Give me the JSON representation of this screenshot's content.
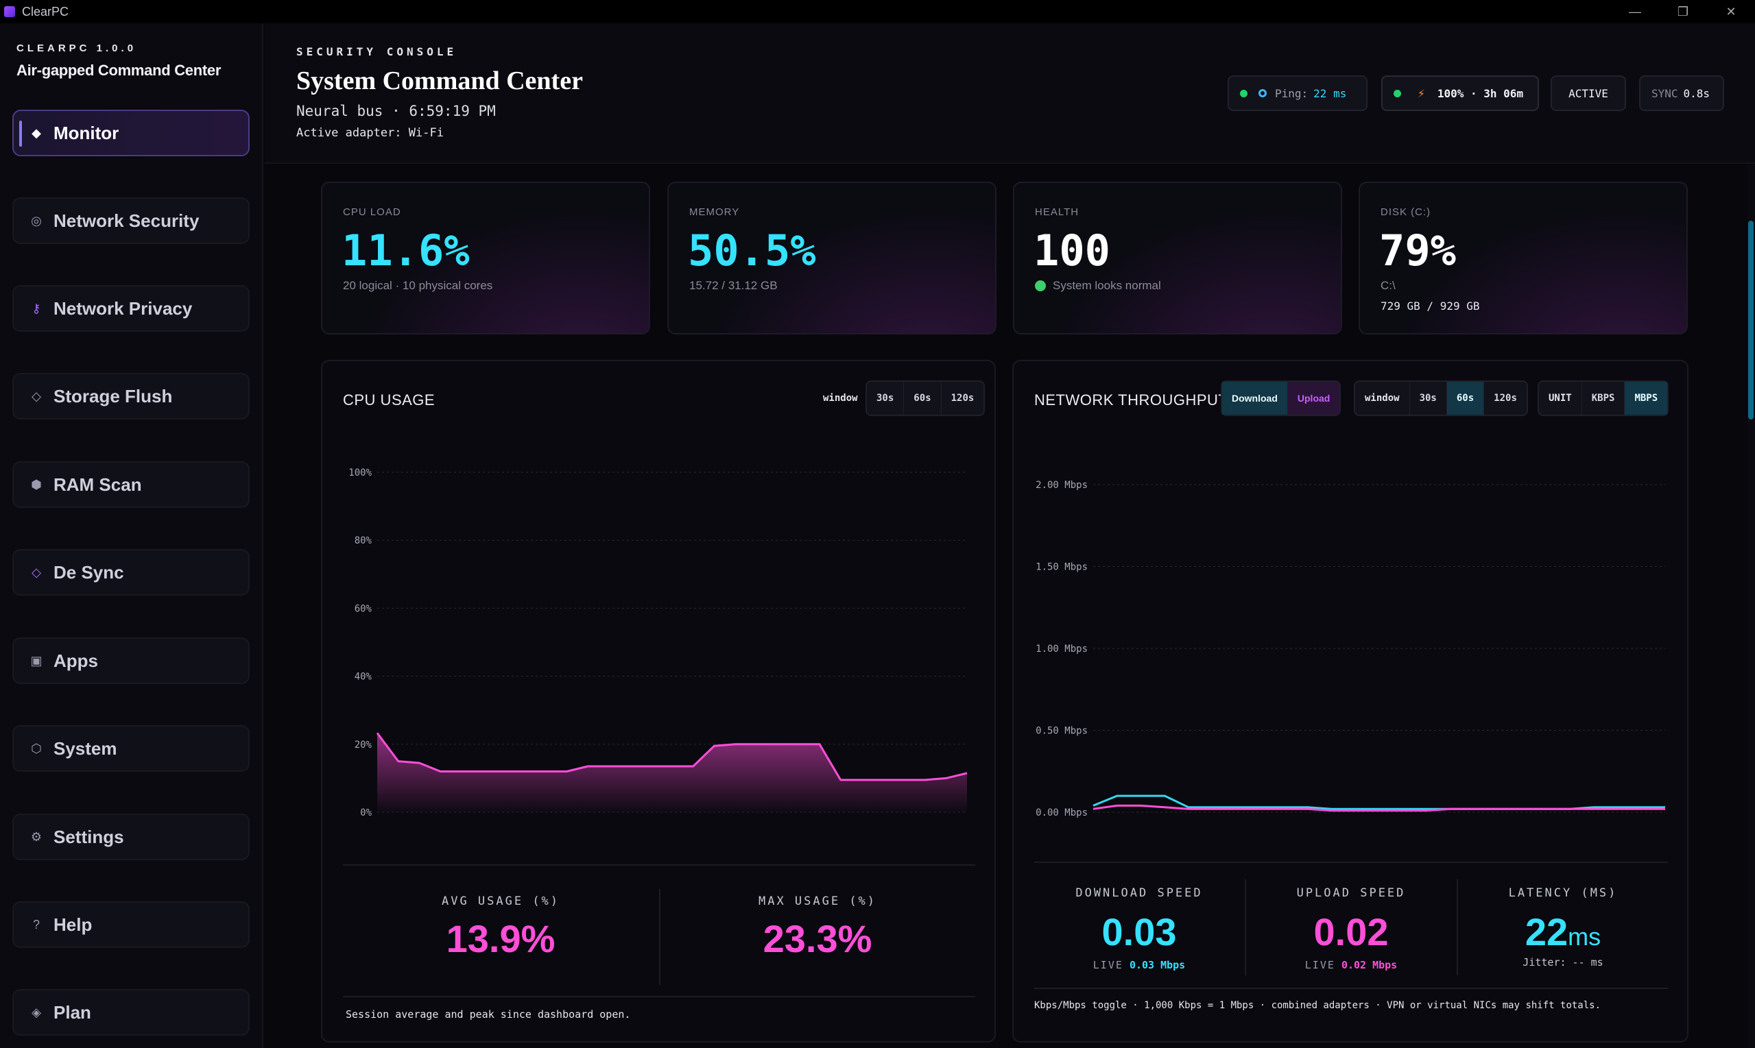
{
  "window": {
    "title": "ClearPC",
    "minimize": "—",
    "restore": "❐",
    "close": "✕"
  },
  "sidebar": {
    "version": "CLEARPC 1.0.0",
    "subtitle": "Air-gapped Command Center",
    "items": [
      {
        "label": "Monitor",
        "icon": "◆",
        "icon_name": "diamond-icon"
      },
      {
        "label": "Network Security",
        "icon": "◎",
        "icon_name": "shield-icon"
      },
      {
        "label": "Network Privacy",
        "icon": "⚷",
        "icon_name": "key-icon"
      },
      {
        "label": "Storage Flush",
        "icon": "◇",
        "icon_name": "diamond-outline-icon"
      },
      {
        "label": "RAM Scan",
        "icon": "⬢",
        "icon_name": "hexagon-icon"
      },
      {
        "label": "De Sync",
        "icon": "◇",
        "icon_name": "sync-diamond-icon"
      },
      {
        "label": "Apps",
        "icon": "▣",
        "icon_name": "apps-icon"
      },
      {
        "label": "System",
        "icon": "⬡",
        "icon_name": "hexagon-outline-icon"
      },
      {
        "label": "Settings",
        "icon": "⚙",
        "icon_name": "gear-icon"
      },
      {
        "label": "Help",
        "icon": "?",
        "icon_name": "help-icon"
      },
      {
        "label": "Plan",
        "icon": "◈",
        "icon_name": "plan-icon"
      }
    ]
  },
  "header": {
    "eyebrow": "SECURITY CONSOLE",
    "title": "System Command Center",
    "subtitle": "Neural bus · 6:59:19 PM",
    "adapter": "Active adapter: Wi-Fi",
    "ping_label": "Ping:",
    "ping_value": "22 ms",
    "battery": "100% · 3h 06m",
    "battery_icon": "⚡",
    "status": "ACTIVE",
    "sync_label": "SYNC",
    "sync_value": "0.8s"
  },
  "cards": {
    "cpu": {
      "label": "CPU LOAD",
      "value": "11.6%",
      "sub": "20 logical · 10 physical cores"
    },
    "memory": {
      "label": "MEMORY",
      "value": "50.5%",
      "sub": "15.72 / 31.12 GB"
    },
    "health": {
      "label": "HEALTH",
      "value": "100",
      "sub": "System looks normal"
    },
    "disk": {
      "label": "DISK (C:)",
      "value": "79%",
      "sub": "C:\\",
      "sub2": "729 GB / 929 GB"
    }
  },
  "cpu_panel": {
    "title": "CPU USAGE",
    "window_label": "window",
    "windows": [
      "30s",
      "60s",
      "120s"
    ],
    "avg_label": "AVG USAGE (%)",
    "avg_value": "13.9%",
    "max_label": "MAX USAGE (%)",
    "max_value": "23.3%",
    "footnote": "Session average and peak since dashboard open."
  },
  "net_panel": {
    "title": "NETWORK THROUGHPUT",
    "direction": [
      "Download",
      "Upload"
    ],
    "window_label": "window",
    "windows": [
      "30s",
      "60s",
      "120s"
    ],
    "unit_label": "UNIT",
    "units": [
      "KBPS",
      "MBPS"
    ],
    "download_label": "DOWNLOAD SPEED",
    "download_value": "0.03",
    "download_live_label": "LIVE",
    "download_live_value": "0.03 Mbps",
    "upload_label": "UPLOAD SPEED",
    "upload_value": "0.02",
    "upload_live_label": "LIVE",
    "upload_live_value": "0.02 Mbps",
    "latency_label": "LATENCY (MS)",
    "latency_value": "22",
    "latency_unit": "ms",
    "jitter": "Jitter: -- ms",
    "footnote": "Kbps/Mbps toggle · 1,000 Kbps = 1 Mbps · combined adapters · VPN or virtual NICs may shift totals."
  },
  "chart_data": [
    {
      "type": "area",
      "title": "CPU USAGE",
      "xlabel": "",
      "ylabel": "",
      "yticks": [
        "100%",
        "80%",
        "60%",
        "40%",
        "20%",
        "0%"
      ],
      "ylim": [
        0,
        100
      ],
      "grid": true,
      "series": [
        {
          "color": "#ff4fd8",
          "values": [
            23.3,
            15,
            14.5,
            12,
            12,
            12,
            12,
            12,
            12,
            12,
            13.5,
            13.5,
            13.5,
            13.5,
            13.5,
            13.5,
            19.5,
            20,
            20,
            20,
            20,
            20,
            9.5,
            9.5,
            9.5,
            9.5,
            9.5,
            10,
            11.5
          ]
        }
      ]
    },
    {
      "type": "line",
      "title": "NETWORK THROUGHPUT",
      "xlabel": "",
      "ylabel": "",
      "yticks": [
        "2.00 Mbps",
        "1.50 Mbps",
        "1.00 Mbps",
        "0.50 Mbps",
        "0.00 Mbps"
      ],
      "ylim": [
        0,
        2
      ],
      "grid": true,
      "series": [
        {
          "color": "#35d7f0",
          "values": [
            0.04,
            0.1,
            0.1,
            0.1,
            0.03,
            0.03,
            0.03,
            0.03,
            0.03,
            0.03,
            0.02,
            0.02,
            0.02,
            0.02,
            0.02,
            0.02,
            0.02,
            0.02,
            0.02,
            0.02,
            0.02,
            0.03,
            0.03,
            0.03,
            0.03
          ]
        },
        {
          "color": "#ff4fd8",
          "values": [
            0.02,
            0.04,
            0.04,
            0.03,
            0.02,
            0.02,
            0.02,
            0.02,
            0.02,
            0.02,
            0.01,
            0.01,
            0.01,
            0.01,
            0.01,
            0.02,
            0.02,
            0.02,
            0.02,
            0.02,
            0.02,
            0.02,
            0.02,
            0.02,
            0.02
          ]
        }
      ]
    }
  ],
  "colors": {
    "cyan": "#35e2ff",
    "pink": "#ff4fd8",
    "green": "#22d36b",
    "accent": "#8b7cff"
  }
}
